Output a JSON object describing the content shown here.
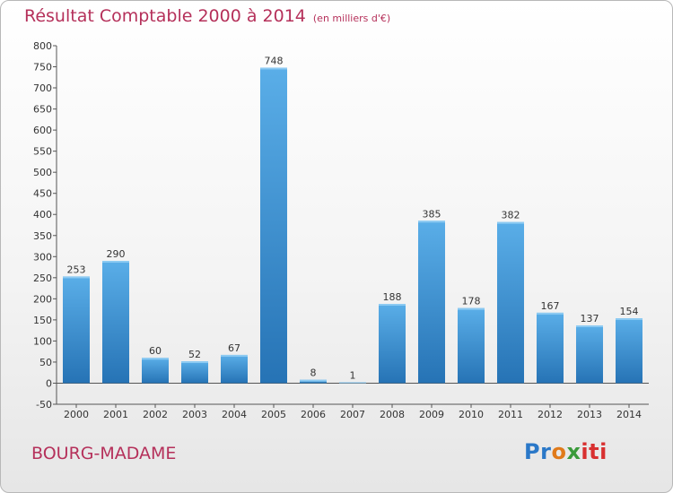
{
  "title": "Résultat Comptable 2000 à 2014",
  "unit": "(en milliers d'€)",
  "commune": "BOURG-MADAME",
  "logo": {
    "p1": "Pr",
    "p2": "o",
    "p3": "x",
    "p4": "iti"
  },
  "chart_data": {
    "type": "bar",
    "title": "Résultat Comptable 2000 à 2014",
    "subtitle": "(en milliers d'€)",
    "xlabel": "",
    "ylabel": "",
    "categories": [
      "2000",
      "2001",
      "2002",
      "2003",
      "2004",
      "2005",
      "2006",
      "2007",
      "2008",
      "2009",
      "2010",
      "2011",
      "2012",
      "2013",
      "2014"
    ],
    "values": [
      253,
      290,
      60,
      52,
      67,
      748,
      8,
      1,
      188,
      385,
      178,
      382,
      167,
      137,
      154
    ],
    "ylim": [
      -50,
      800
    ],
    "yticks": [
      -50,
      0,
      50,
      100,
      150,
      200,
      250,
      300,
      350,
      400,
      450,
      500,
      550,
      600,
      650,
      700,
      750,
      800
    ],
    "grid": false,
    "legend": "none",
    "colors": {
      "bar_top": "#5aaee8",
      "bar_bottom": "#2673b5"
    }
  }
}
